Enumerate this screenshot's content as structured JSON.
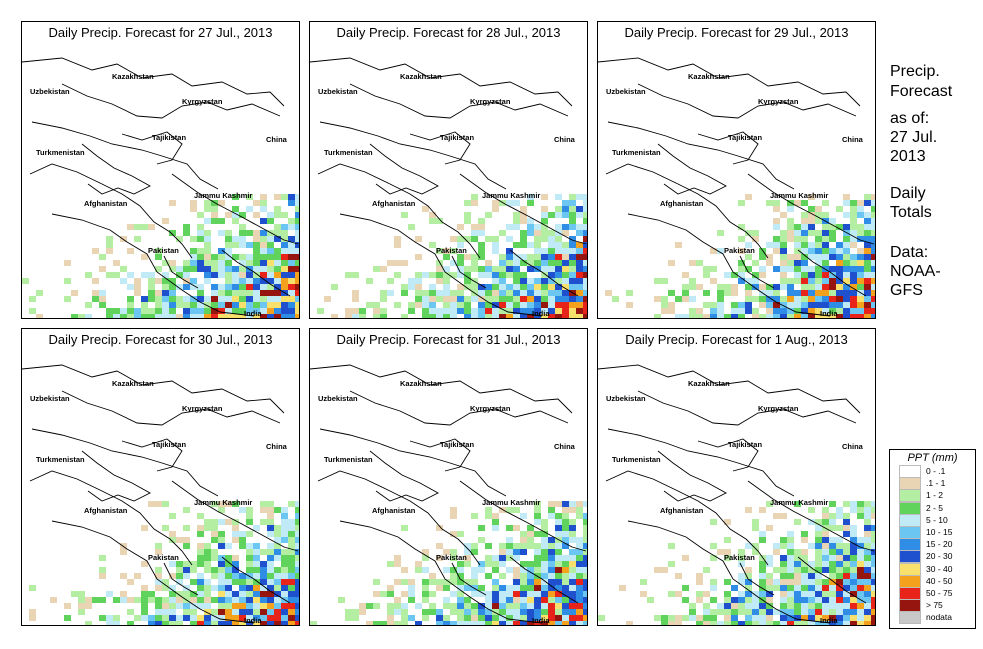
{
  "panels": [
    {
      "title": "Daily Precip. Forecast for  27 Jul., 2013"
    },
    {
      "title": "Daily Precip. Forecast for  28 Jul., 2013"
    },
    {
      "title": "Daily Precip. Forecast for  29 Jul., 2013"
    },
    {
      "title": "Daily Precip. Forecast for  30 Jul., 2013"
    },
    {
      "title": "Daily Precip. Forecast for  31 Jul., 2013"
    },
    {
      "title": "Daily Precip. Forecast for  1 Aug., 2013"
    }
  ],
  "map_labels": {
    "uzbekistan": "Uzbekistan",
    "kazakhstan": "Kazakhstan",
    "kyrgyzstan": "Kyrgyzstan",
    "tajikistan": "Tajikistan",
    "china": "China",
    "turkmenistan": "Turkmenistan",
    "afghanistan": "Afghanistan",
    "jammu_kashmir": "Jammu Kashmir",
    "pakistan": "Pakistan",
    "india": "India"
  },
  "sidebar": {
    "heading1": "Precip.",
    "heading2": "Forecast",
    "asof": "as of:",
    "date1": "27 Jul.",
    "date2": "2013",
    "daily1": "Daily",
    "daily2": "Totals",
    "data1": "Data:",
    "data2": "NOAA-",
    "data3": "GFS"
  },
  "legend": {
    "title": "PPT (mm)",
    "items": [
      {
        "label": "0 - .1",
        "color": "#ffffff"
      },
      {
        "label": ".1 - 1",
        "color": "#e9d4b4"
      },
      {
        "label": "1 - 2",
        "color": "#b3eea3"
      },
      {
        "label": "2 - 5",
        "color": "#5fd35b"
      },
      {
        "label": "5 - 10",
        "color": "#bfeaf6"
      },
      {
        "label": "10 - 15",
        "color": "#6cc6f2"
      },
      {
        "label": "15 - 20",
        "color": "#2f8de5"
      },
      {
        "label": "20 - 30",
        "color": "#1f51cf"
      },
      {
        "label": "30 - 40",
        "color": "#f8e06c"
      },
      {
        "label": "40 - 50",
        "color": "#f4a21e"
      },
      {
        "label": "50 - 75",
        "color": "#e8241a"
      },
      {
        "label": "> 75",
        "color": "#96160f"
      },
      {
        "label": "nodata",
        "color": "#c8c8c8"
      }
    ]
  }
}
